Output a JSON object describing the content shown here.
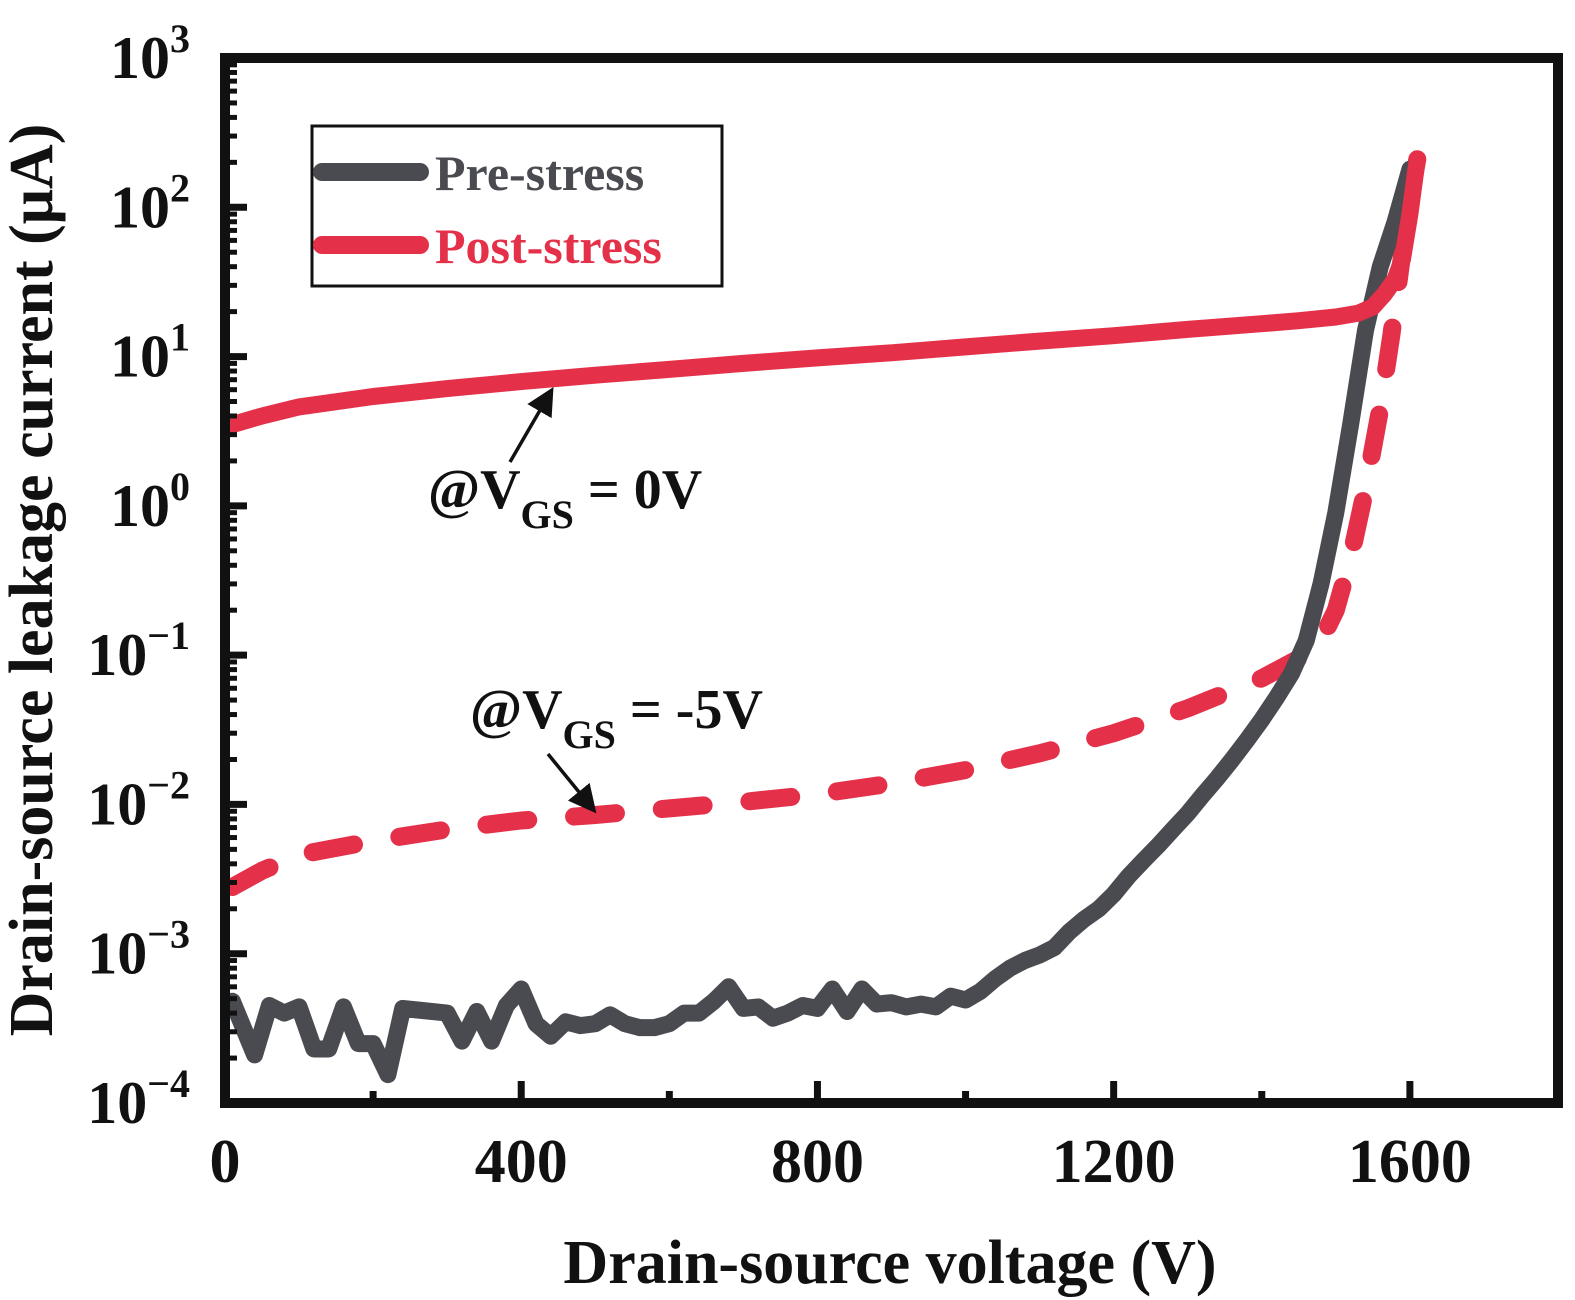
{
  "chart_data": {
    "type": "line",
    "title": "",
    "xlabel": "Drain-source voltage (V)",
    "ylabel": "Drain-source leakage current (μA)",
    "xlim": [
      0,
      1800
    ],
    "ylim": [
      0.0001,
      1000
    ],
    "yscale": "log",
    "grid": false,
    "legend_position": "top-left",
    "x_ticks": [
      0,
      400,
      800,
      1200,
      1600
    ],
    "x_tick_labels": [
      "0",
      "400",
      "800",
      "1200",
      "1600"
    ],
    "x_minor_ticks": [
      200,
      600,
      1000,
      1400
    ],
    "y_ticks": [
      {
        "base": "10",
        "exp": "3",
        "value": 1000
      },
      {
        "base": "10",
        "exp": "2",
        "value": 100
      },
      {
        "base": "10",
        "exp": "1",
        "value": 10
      },
      {
        "base": "10",
        "exp": "0",
        "value": 1
      },
      {
        "base": "10",
        "exp": "−1",
        "value": 0.1
      },
      {
        "base": "10",
        "exp": "−2",
        "value": 0.01
      },
      {
        "base": "10",
        "exp": "−3",
        "value": 0.001
      },
      {
        "base": "10",
        "exp": "−4",
        "value": 0.0001
      }
    ],
    "legend": [
      {
        "label": "Pre-stress",
        "color": "#4a4b50"
      },
      {
        "label": "Post-stress",
        "color": "#e5304a"
      }
    ],
    "series": [
      {
        "name": "Pre-stress",
        "condition": "@VGS = 0V",
        "color": "#4a4b50",
        "style": "solid",
        "x": [
          10,
          40,
          60,
          80,
          100,
          120,
          140,
          160,
          180,
          200,
          220,
          240,
          260,
          300,
          320,
          340,
          360,
          380,
          400,
          420,
          440,
          460,
          480,
          500,
          520,
          540,
          560,
          580,
          600,
          620,
          640,
          660,
          680,
          700,
          720,
          740,
          760,
          780,
          800,
          820,
          840,
          860,
          880,
          900,
          920,
          940,
          960,
          980,
          1000,
          1020,
          1040,
          1060,
          1080,
          1100,
          1120,
          1140,
          1160,
          1180,
          1200,
          1220,
          1240,
          1260,
          1280,
          1300,
          1320,
          1340,
          1360,
          1380,
          1400,
          1420,
          1440,
          1460,
          1480,
          1500,
          1520,
          1540,
          1560,
          1580,
          1600
        ],
        "y": [
          0.00048,
          0.00021,
          0.00045,
          0.0004,
          0.00044,
          0.00023,
          0.00023,
          0.00044,
          0.00025,
          0.00025,
          0.000155,
          0.00043,
          0.00042,
          0.0004,
          0.00026,
          0.00041,
          0.00026,
          0.00045,
          0.00058,
          0.00034,
          0.00028,
          0.00035,
          0.00033,
          0.00034,
          0.00039,
          0.00034,
          0.00032,
          0.00032,
          0.00034,
          0.0004,
          0.0004,
          0.00048,
          0.0006,
          0.00043,
          0.00044,
          0.00037,
          0.0004,
          0.00045,
          0.00043,
          0.00058,
          0.00041,
          0.00058,
          0.00046,
          0.00047,
          0.00044,
          0.00046,
          0.00044,
          0.00052,
          0.00049,
          0.00056,
          0.00068,
          0.0008,
          0.0009,
          0.00098,
          0.0011,
          0.0014,
          0.0017,
          0.002,
          0.0025,
          0.0033,
          0.0042,
          0.0053,
          0.0068,
          0.0087,
          0.0115,
          0.015,
          0.02,
          0.027,
          0.037,
          0.052,
          0.075,
          0.125,
          0.3,
          0.9,
          3.5,
          15,
          40,
          80,
          180
        ]
      },
      {
        "name": "Post-stress",
        "condition": "@VGS = 0V",
        "color": "#e5304a",
        "style": "solid",
        "x": [
          10,
          50,
          100,
          200,
          300,
          400,
          500,
          600,
          700,
          800,
          900,
          1000,
          1100,
          1200,
          1300,
          1400,
          1450,
          1500,
          1530,
          1550,
          1565,
          1580,
          1590,
          1600,
          1610
        ],
        "y": [
          3.5,
          4.0,
          4.6,
          5.4,
          6.1,
          6.8,
          7.5,
          8.2,
          9.0,
          9.8,
          10.6,
          11.6,
          12.7,
          13.8,
          15.2,
          16.6,
          17.4,
          18.4,
          19.5,
          21.5,
          26,
          33,
          45,
          90,
          210
        ]
      },
      {
        "name": "Post-stress",
        "condition": "@VGS = -5V",
        "color": "#e5304a",
        "style": "dashed",
        "x": [
          10,
          50,
          100,
          200,
          300,
          400,
          500,
          600,
          700,
          800,
          900,
          1000,
          1100,
          1200,
          1300,
          1400,
          1450,
          1480,
          1500,
          1520,
          1540,
          1560,
          1575,
          1590,
          1600,
          1610
        ],
        "y": [
          0.0028,
          0.0036,
          0.0046,
          0.0057,
          0.0068,
          0.0078,
          0.0085,
          0.0094,
          0.0104,
          0.0117,
          0.0138,
          0.017,
          0.022,
          0.03,
          0.044,
          0.07,
          0.095,
          0.125,
          0.2,
          0.45,
          1.3,
          4.5,
          14,
          50,
          110,
          210
        ]
      }
    ],
    "annotations": [
      {
        "text_main": "@V",
        "text_sub": "GS",
        "text_tail": " = 0V",
        "points_to": "Post-stress @VGS = 0V solid curve",
        "arrow_target": {
          "x": 530,
          "y": 6.8
        }
      },
      {
        "text_main": "@V",
        "text_sub": "GS",
        "text_tail": " = -5V",
        "points_to": "Post-stress @VGS = -5V dashed curve",
        "arrow_target": {
          "x": 500,
          "y": 0.0085
        }
      }
    ]
  }
}
